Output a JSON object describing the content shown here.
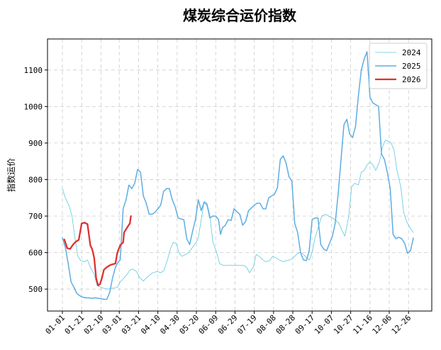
{
  "chart_data": {
    "type": "line",
    "title": "煤炭综合运价指数",
    "xlabel": "",
    "ylabel": "指数运价",
    "xlim": [
      "01-01",
      "12-31"
    ],
    "ylim": [
      440,
      1185
    ],
    "yticks": [
      500,
      600,
      700,
      800,
      900,
      1000,
      1100
    ],
    "xticks": [
      "01-01",
      "01-21",
      "02-10",
      "03-01",
      "03-21",
      "04-10",
      "04-30",
      "05-20",
      "06-09",
      "06-29",
      "07-19",
      "08-08",
      "08-28",
      "09-17",
      "10-07",
      "10-27",
      "11-16",
      "12-06",
      "12-26"
    ],
    "grid": true,
    "legend": "top-right",
    "series": [
      {
        "name": "2024",
        "color": "#5bc8e0",
        "width": 0.8,
        "points": [
          [
            "01-01",
            775
          ],
          [
            "01-04",
            750
          ],
          [
            "01-08",
            728
          ],
          [
            "01-11",
            700
          ],
          [
            "01-14",
            640
          ],
          [
            "01-17",
            590
          ],
          [
            "01-20",
            578
          ],
          [
            "01-24",
            575
          ],
          [
            "01-27",
            580
          ],
          [
            "01-30",
            560
          ],
          [
            "02-03",
            540
          ],
          [
            "02-06",
            510
          ],
          [
            "02-10",
            505
          ],
          [
            "02-13",
            502
          ],
          [
            "02-17",
            500
          ],
          [
            "02-20",
            502
          ],
          [
            "02-24",
            503
          ],
          [
            "02-27",
            505
          ],
          [
            "03-02",
            520
          ],
          [
            "03-05",
            528
          ],
          [
            "03-09",
            540
          ],
          [
            "03-12",
            552
          ],
          [
            "03-15",
            555
          ],
          [
            "03-19",
            548
          ],
          [
            "03-22",
            532
          ],
          [
            "03-26",
            522
          ],
          [
            "03-29",
            530
          ],
          [
            "04-02",
            540
          ],
          [
            "04-05",
            545
          ],
          [
            "04-09",
            548
          ],
          [
            "04-13",
            545
          ],
          [
            "04-16",
            550
          ],
          [
            "04-20",
            580
          ],
          [
            "04-23",
            610
          ],
          [
            "04-26",
            628
          ],
          [
            "04-29",
            625
          ],
          [
            "05-02",
            600
          ],
          [
            "05-05",
            590
          ],
          [
            "05-09",
            595
          ],
          [
            "05-12",
            600
          ],
          [
            "05-16",
            615
          ],
          [
            "05-19",
            625
          ],
          [
            "05-22",
            640
          ],
          [
            "05-25",
            690
          ],
          [
            "05-28",
            740
          ],
          [
            "05-31",
            735
          ],
          [
            "06-03",
            700
          ],
          [
            "06-06",
            630
          ],
          [
            "06-10",
            600
          ],
          [
            "06-13",
            570
          ],
          [
            "06-17",
            565
          ],
          [
            "06-20",
            565
          ],
          [
            "06-24",
            566
          ],
          [
            "06-27",
            565
          ],
          [
            "07-01",
            566
          ],
          [
            "07-04",
            565
          ],
          [
            "07-08",
            565
          ],
          [
            "07-11",
            560
          ],
          [
            "07-14",
            545
          ],
          [
            "07-18",
            560
          ],
          [
            "07-21",
            595
          ],
          [
            "07-24",
            590
          ],
          [
            "07-28",
            580
          ],
          [
            "07-31",
            575
          ],
          [
            "08-04",
            578
          ],
          [
            "08-07",
            590
          ],
          [
            "08-11",
            585
          ],
          [
            "08-14",
            580
          ],
          [
            "08-18",
            575
          ],
          [
            "08-21",
            578
          ],
          [
            "08-25",
            580
          ],
          [
            "08-28",
            585
          ],
          [
            "09-01",
            595
          ],
          [
            "09-04",
            600
          ],
          [
            "09-07",
            598
          ],
          [
            "09-10",
            590
          ],
          [
            "09-14",
            580
          ],
          [
            "09-17",
            600
          ],
          [
            "09-20",
            640
          ],
          [
            "09-24",
            675
          ],
          [
            "09-27",
            700
          ],
          [
            "10-01",
            705
          ],
          [
            "10-04",
            700
          ],
          [
            "10-08",
            695
          ],
          [
            "10-11",
            690
          ],
          [
            "10-15",
            680
          ],
          [
            "10-18",
            660
          ],
          [
            "10-21",
            645
          ],
          [
            "10-25",
            700
          ],
          [
            "10-28",
            780
          ],
          [
            "10-31",
            790
          ],
          [
            "11-04",
            785
          ],
          [
            "11-07",
            820
          ],
          [
            "11-10",
            825
          ],
          [
            "11-13",
            840
          ],
          [
            "11-16",
            848
          ],
          [
            "11-19",
            840
          ],
          [
            "11-22",
            825
          ],
          [
            "11-26",
            850
          ],
          [
            "11-29",
            890
          ],
          [
            "12-02",
            908
          ],
          [
            "12-05",
            905
          ],
          [
            "12-08",
            900
          ],
          [
            "12-11",
            880
          ],
          [
            "12-14",
            825
          ],
          [
            "12-18",
            780
          ],
          [
            "12-21",
            710
          ],
          [
            "12-24",
            685
          ],
          [
            "12-27",
            670
          ],
          [
            "12-31",
            655
          ]
        ]
      },
      {
        "name": "2025",
        "color": "#5dade2",
        "width": 1.5,
        "points": [
          [
            "01-01",
            640
          ],
          [
            "01-04",
            615
          ],
          [
            "01-07",
            570
          ],
          [
            "01-10",
            520
          ],
          [
            "01-13",
            505
          ],
          [
            "01-16",
            488
          ],
          [
            "01-19",
            482
          ],
          [
            "01-22",
            478
          ],
          [
            "01-25",
            476
          ],
          [
            "01-28",
            476
          ],
          [
            "01-31",
            475
          ],
          [
            "02-04",
            476
          ],
          [
            "02-07",
            475
          ],
          [
            "02-10",
            474
          ],
          [
            "02-13",
            472
          ],
          [
            "02-16",
            472
          ],
          [
            "02-19",
            490
          ],
          [
            "02-22",
            530
          ],
          [
            "02-25",
            560
          ],
          [
            "02-28",
            575
          ],
          [
            "03-02",
            580
          ],
          [
            "03-05",
            720
          ],
          [
            "03-08",
            745
          ],
          [
            "03-11",
            785
          ],
          [
            "03-14",
            775
          ],
          [
            "03-17",
            790
          ],
          [
            "03-20",
            828
          ],
          [
            "03-23",
            820
          ],
          [
            "03-26",
            755
          ],
          [
            "03-29",
            735
          ],
          [
            "04-01",
            705
          ],
          [
            "04-04",
            705
          ],
          [
            "04-07",
            710
          ],
          [
            "04-10",
            720
          ],
          [
            "04-13",
            730
          ],
          [
            "04-16",
            768
          ],
          [
            "04-19",
            775
          ],
          [
            "04-22",
            775
          ],
          [
            "04-25",
            745
          ],
          [
            "04-28",
            725
          ],
          [
            "05-01",
            695
          ],
          [
            "05-04",
            692
          ],
          [
            "05-07",
            690
          ],
          [
            "05-10",
            638
          ],
          [
            "05-13",
            622
          ],
          [
            "05-16",
            658
          ],
          [
            "05-19",
            690
          ],
          [
            "05-22",
            745
          ],
          [
            "05-25",
            715
          ],
          [
            "05-28",
            738
          ],
          [
            "05-31",
            730
          ],
          [
            "06-03",
            695
          ],
          [
            "06-06",
            700
          ],
          [
            "06-09",
            700
          ],
          [
            "06-12",
            690
          ],
          [
            "06-14",
            650
          ],
          [
            "06-16",
            668
          ],
          [
            "06-19",
            675
          ],
          [
            "06-22",
            690
          ],
          [
            "06-25",
            688
          ],
          [
            "06-28",
            720
          ],
          [
            "07-01",
            712
          ],
          [
            "07-04",
            705
          ],
          [
            "07-07",
            675
          ],
          [
            "07-10",
            685
          ],
          [
            "07-13",
            715
          ],
          [
            "07-16",
            722
          ],
          [
            "07-19",
            730
          ],
          [
            "07-22",
            735
          ],
          [
            "07-25",
            735
          ],
          [
            "07-28",
            720
          ],
          [
            "07-31",
            720
          ],
          [
            "08-03",
            750
          ],
          [
            "08-06",
            755
          ],
          [
            "08-09",
            760
          ],
          [
            "08-12",
            778
          ],
          [
            "08-15",
            855
          ],
          [
            "08-18",
            865
          ],
          [
            "08-21",
            845
          ],
          [
            "08-24",
            808
          ],
          [
            "08-27",
            795
          ],
          [
            "08-30",
            680
          ],
          [
            "09-02",
            655
          ],
          [
            "09-05",
            600
          ],
          [
            "09-08",
            580
          ],
          [
            "09-11",
            578
          ],
          [
            "09-14",
            605
          ],
          [
            "09-17",
            690
          ],
          [
            "09-20",
            695
          ],
          [
            "09-23",
            695
          ],
          [
            "09-26",
            622
          ],
          [
            "09-29",
            610
          ],
          [
            "10-02",
            605
          ],
          [
            "10-05",
            625
          ],
          [
            "10-08",
            645
          ],
          [
            "10-11",
            680
          ],
          [
            "10-14",
            760
          ],
          [
            "10-17",
            855
          ],
          [
            "10-20",
            950
          ],
          [
            "10-23",
            965
          ],
          [
            "10-26",
            925
          ],
          [
            "10-29",
            915
          ],
          [
            "11-01",
            945
          ],
          [
            "11-04",
            1030
          ],
          [
            "11-07",
            1100
          ],
          [
            "11-10",
            1130
          ],
          [
            "11-13",
            1150
          ],
          [
            "11-16",
            1025
          ],
          [
            "11-19",
            1010
          ],
          [
            "11-22",
            1005
          ],
          [
            "11-25",
            1000
          ],
          [
            "11-28",
            870
          ],
          [
            "12-01",
            855
          ],
          [
            "12-04",
            820
          ],
          [
            "12-07",
            775
          ],
          [
            "12-10",
            650
          ],
          [
            "12-13",
            638
          ],
          [
            "12-16",
            642
          ],
          [
            "12-19",
            638
          ],
          [
            "12-22",
            625
          ],
          [
            "12-25",
            598
          ],
          [
            "12-28",
            605
          ],
          [
            "12-31",
            640
          ]
        ]
      },
      {
        "name": "2026",
        "color": "#e03131",
        "width": 2.3,
        "points": [
          [
            "01-03",
            636
          ],
          [
            "01-06",
            612
          ],
          [
            "01-09",
            610
          ],
          [
            "01-12",
            622
          ],
          [
            "01-15",
            630
          ],
          [
            "01-18",
            635
          ],
          [
            "01-21",
            680
          ],
          [
            "01-24",
            682
          ],
          [
            "01-27",
            678
          ],
          [
            "01-30",
            620
          ],
          [
            "02-01",
            608
          ],
          [
            "02-03",
            585
          ],
          [
            "02-05",
            530
          ],
          [
            "02-07",
            510
          ],
          [
            "02-09",
            514
          ],
          [
            "02-11",
            530
          ],
          [
            "02-13",
            553
          ],
          [
            "02-16",
            560
          ],
          [
            "02-19",
            565
          ],
          [
            "02-22",
            568
          ],
          [
            "02-25",
            570
          ],
          [
            "02-27",
            600
          ],
          [
            "03-02",
            620
          ],
          [
            "03-05",
            628
          ],
          [
            "03-06",
            655
          ],
          [
            "03-09",
            668
          ],
          [
            "03-12",
            680
          ],
          [
            "03-13",
            700
          ]
        ]
      }
    ]
  }
}
